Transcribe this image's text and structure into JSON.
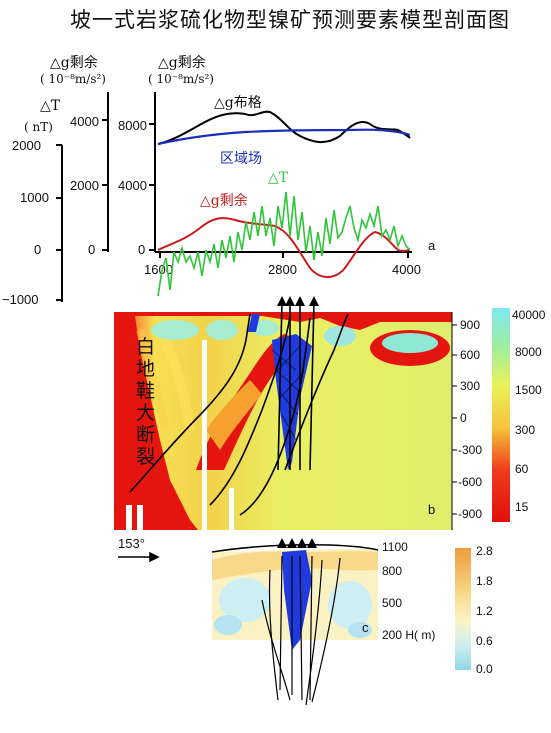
{
  "title": "坡一式岩浆硫化物型镍矿预测要素模型剖面图",
  "panel_a": {
    "label": "a",
    "axis_dT": {
      "name": "△T",
      "unit": "( nT)",
      "ticks": [
        "2000",
        "1000",
        "0",
        "−1000"
      ]
    },
    "axis_g_res_left": {
      "name": "△g剩余",
      "unit": "( 10⁻⁸m/s²)",
      "ticks": [
        "4000",
        "2000",
        "0"
      ]
    },
    "axis_g_res_right": {
      "name": "△g剩余",
      "unit": "( 10⁻⁸m/s²)",
      "ticks": [
        "8000",
        "4000",
        "0"
      ]
    },
    "x_ticks": [
      "1600",
      "2800",
      "4000"
    ],
    "curve_labels": {
      "bouguer": "△g布格",
      "regional": "区域场",
      "residual": "△g剩余",
      "magnetic": "△T"
    },
    "colors": {
      "bouguer": "#000000",
      "regional": "#1a2fb8",
      "residual": "#c81c1c",
      "magnetic": "#2fc53a"
    }
  },
  "panel_b": {
    "label": "b",
    "fault_label": "白地鞋大断裂",
    "depth_ticks": [
      "900",
      "600",
      "300",
      "0",
      "-300",
      "-600",
      "-900"
    ],
    "colorbar_ticks": [
      "40000",
      "8000",
      "1500",
      "300",
      "60",
      "15"
    ],
    "strike": "153°"
  },
  "panel_c": {
    "label": "c",
    "depth_ticks": [
      "1100",
      "800",
      "500",
      "200 H( m)"
    ],
    "colorbar_ticks": [
      "2.8",
      "1.8",
      "1.2",
      "0.6",
      "0.0"
    ]
  }
}
